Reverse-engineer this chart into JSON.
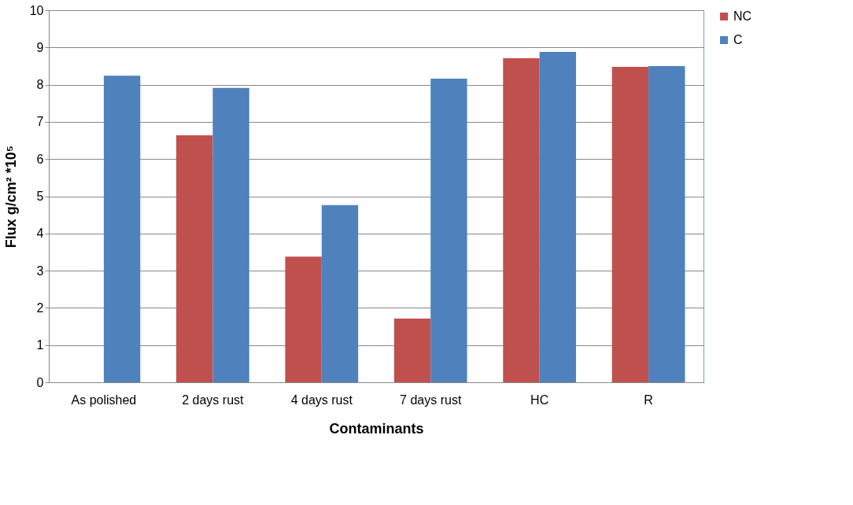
{
  "chart_data": {
    "type": "bar",
    "xlabel": "Contaminants",
    "ylabel": "Flux g/cm² *10⁵",
    "categories": [
      "As polished",
      "2 days rust",
      "4 days rust",
      "7 days rust",
      "HC",
      "R"
    ],
    "series": [
      {
        "name": "NC",
        "color": "#c0504d",
        "values": [
          null,
          6.64,
          3.38,
          1.71,
          8.71,
          8.48
        ]
      },
      {
        "name": "C",
        "color": "#4f81bd",
        "values": [
          8.24,
          7.91,
          4.76,
          8.16,
          8.88,
          8.5
        ]
      }
    ],
    "ylim": [
      0,
      10
    ],
    "yticks": [
      0,
      1,
      2,
      3,
      4,
      5,
      6,
      7,
      8,
      9,
      10
    ],
    "grid": "y",
    "legend": "right"
  }
}
